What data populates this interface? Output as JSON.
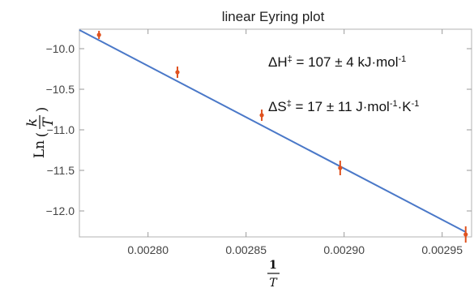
{
  "chart_data": {
    "type": "scatter",
    "title": "linear Eyring plot",
    "xlim": [
      0.002765,
      0.002965
    ],
    "ylim": [
      -12.32,
      -9.76
    ],
    "x_ticks": [
      0.0028,
      0.00285,
      0.0029,
      0.00295
    ],
    "x_tick_labels": [
      "0.00280",
      "0.00285",
      "0.00290",
      "0.00295"
    ],
    "y_ticks": [
      -10.0,
      -10.5,
      -11.0,
      -11.5,
      -12.0
    ],
    "y_tick_labels": [
      "−10.0",
      "−10.5",
      "−11.0",
      "−11.5",
      "−12.0"
    ],
    "grid": false,
    "xlabel": {
      "numerator": "1",
      "denominator": "T"
    },
    "ylabel": {
      "prefix": "Ln",
      "numerator": "k",
      "denominator": "T"
    },
    "series": [
      {
        "colors": {
          "points": "#e0521f",
          "fit": "#4a78c8"
        },
        "points": [
          {
            "x": 0.002775,
            "y": -9.83,
            "err": 0.05
          },
          {
            "x": 0.002815,
            "y": -10.29,
            "err": 0.07
          },
          {
            "x": 0.002858,
            "y": -10.82,
            "err": 0.07
          },
          {
            "x": 0.002898,
            "y": -11.47,
            "err": 0.09
          },
          {
            "x": 0.002962,
            "y": -12.29,
            "err": 0.1
          }
        ]
      }
    ],
    "fit_line": {
      "x": [
        0.002765,
        0.002962
      ],
      "y": [
        -9.77,
        -12.26
      ]
    },
    "annotations": [
      {
        "sym": "ΔH",
        "sup1": "‡",
        "rest": " = 107 ± 4 kJ·mol",
        "sup2": "-1",
        "rest2": "",
        "sup3": ""
      },
      {
        "sym": "ΔS",
        "sup1": "‡",
        "rest": " = 17 ± 11 J·mol",
        "sup2": "-1",
        "rest2": "·K",
        "sup3": "-1"
      }
    ]
  }
}
